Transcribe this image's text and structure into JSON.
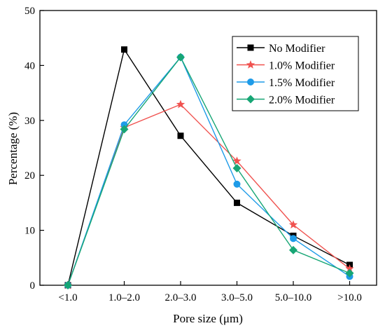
{
  "chart_data": {
    "type": "line",
    "categories": [
      "<1.0",
      "1.0–2.0",
      "2.0–3.0",
      "3.0–5.0",
      "5.0–10.0",
      ">10.0"
    ],
    "xlabel": "Pore size (μm)",
    "ylabel": "Percentage (%)",
    "ylim": [
      0,
      50
    ],
    "yticks": [
      0,
      10,
      20,
      30,
      40,
      50
    ],
    "grid": false,
    "legend_position": "top-right",
    "series": [
      {
        "name": "No Modifier",
        "color": "#000000",
        "marker": "square",
        "values": [
          0,
          42.9,
          27.2,
          15.0,
          9.0,
          3.7
        ]
      },
      {
        "name": "1.0% Modifier",
        "color": "#f0524f",
        "marker": "star",
        "values": [
          0,
          28.7,
          32.9,
          22.6,
          11.0,
          3.0
        ]
      },
      {
        "name": "1.5% Modifier",
        "color": "#1e9be8",
        "marker": "circle",
        "values": [
          0,
          29.2,
          41.5,
          18.4,
          8.5,
          1.6
        ]
      },
      {
        "name": "2.0% Modifier",
        "color": "#17a675",
        "marker": "diamond",
        "values": [
          0,
          28.4,
          41.5,
          21.3,
          6.4,
          2.2
        ]
      }
    ]
  }
}
